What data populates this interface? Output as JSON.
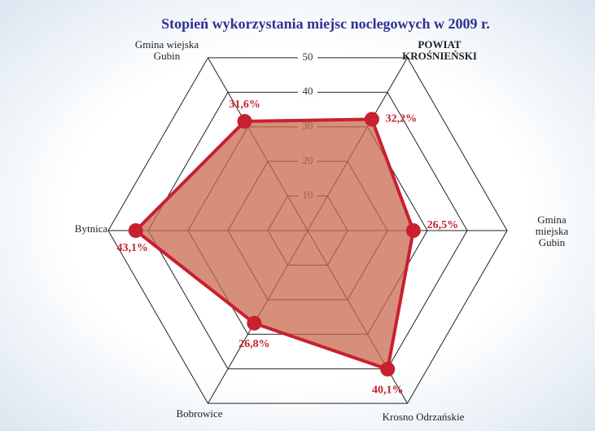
{
  "chart_data": {
    "type": "radar",
    "title": "Stopień wykorzystania miejsc noclegowych w 2009 r.",
    "categories": [
      "POWIAT\nKROŚNIEŃSKI",
      "Gmina miejska\nGubin",
      "Krosno Odrzańskie",
      "Bobrowice",
      "Bytnica",
      "Gmina wiejska\nGubin"
    ],
    "values": [
      32.2,
      26.5,
      40.1,
      26.8,
      43.1,
      31.6
    ],
    "value_labels": [
      "32,2%",
      "26,5%",
      "40,1%",
      "26,8%",
      "43,1%",
      "31,6%"
    ],
    "color": "#c8202f",
    "fill_color": "#c8694f",
    "rlim": [
      0,
      50
    ],
    "rticks": [
      10,
      20,
      30,
      40,
      50
    ],
    "grid": true
  }
}
